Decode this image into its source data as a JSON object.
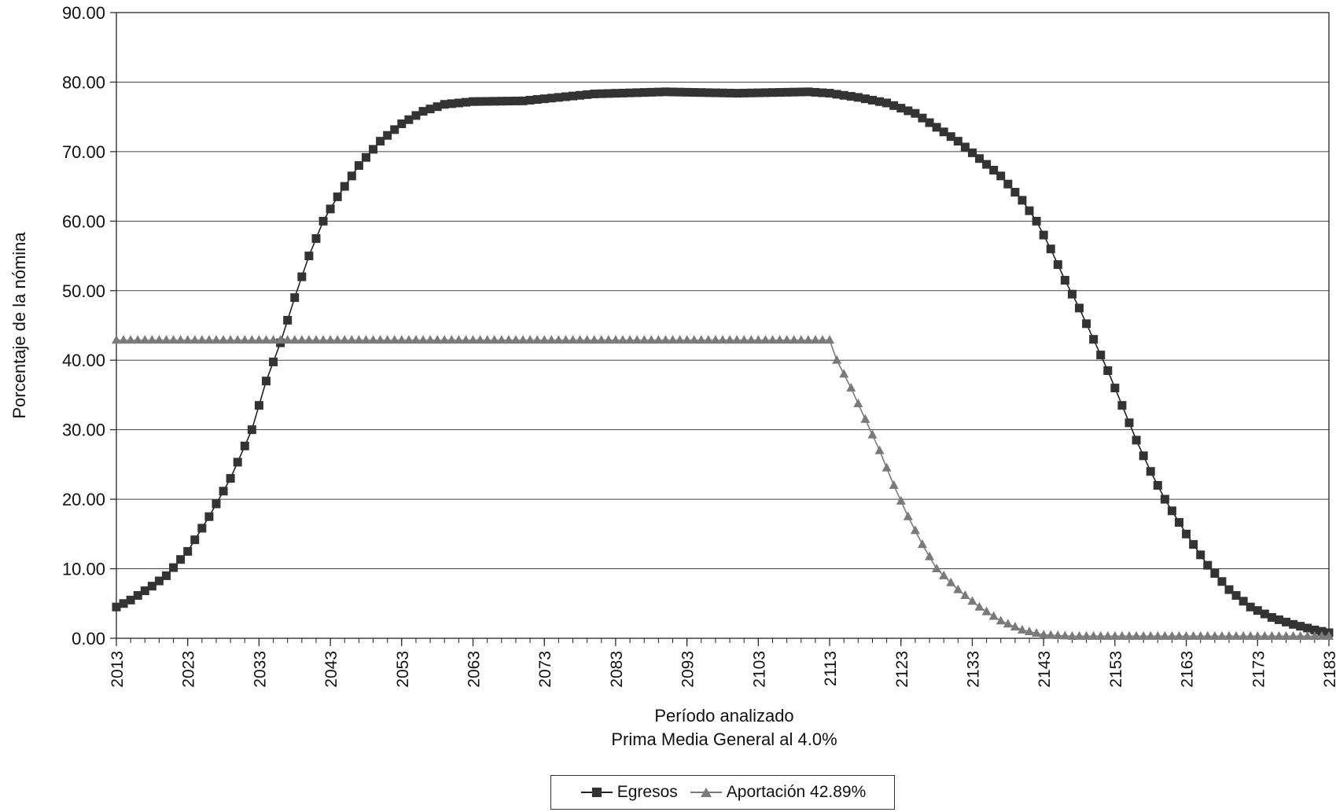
{
  "chart_data": {
    "type": "line",
    "title": "",
    "xlabel": "Período analizado",
    "xlabel2": "Prima Media General al 4.0%",
    "ylabel": "Porcentaje de la nómina",
    "xlim": [
      2013,
      2183
    ],
    "ylim": [
      0,
      90
    ],
    "y_ticks": [
      "0.00",
      "10.00",
      "20.00",
      "30.00",
      "40.00",
      "50.00",
      "60.00",
      "70.00",
      "80.00",
      "90.00"
    ],
    "x_ticks": [
      "2013",
      "2023",
      "2033",
      "2043",
      "2053",
      "2063",
      "2073",
      "2083",
      "2093",
      "2103",
      "2113",
      "2123",
      "2133",
      "2143",
      "2153",
      "2163",
      "2173",
      "2183"
    ],
    "grid": true,
    "legend_position": "bottom",
    "series": [
      {
        "name": "Egresos",
        "marker": "square",
        "color": "#222222",
        "points": [
          [
            2013,
            4.5
          ],
          [
            2015,
            5.5
          ],
          [
            2018,
            7.5
          ],
          [
            2020,
            9.0
          ],
          [
            2023,
            12.5
          ],
          [
            2026,
            17.5
          ],
          [
            2029,
            23.0
          ],
          [
            2032,
            30.0
          ],
          [
            2034,
            37.0
          ],
          [
            2036,
            42.5
          ],
          [
            2038,
            49.0
          ],
          [
            2040,
            55.0
          ],
          [
            2042,
            60.0
          ],
          [
            2044,
            63.5
          ],
          [
            2047,
            68.0
          ],
          [
            2050,
            71.5
          ],
          [
            2053,
            74.0
          ],
          [
            2056,
            75.8
          ],
          [
            2059,
            76.8
          ],
          [
            2063,
            77.2
          ],
          [
            2070,
            77.3
          ],
          [
            2080,
            78.3
          ],
          [
            2090,
            78.6
          ],
          [
            2100,
            78.4
          ],
          [
            2110,
            78.6
          ],
          [
            2113,
            78.4
          ],
          [
            2117,
            77.8
          ],
          [
            2121,
            77.0
          ],
          [
            2125,
            75.5
          ],
          [
            2128,
            73.5
          ],
          [
            2131,
            71.5
          ],
          [
            2134,
            69.0
          ],
          [
            2137,
            66.5
          ],
          [
            2140,
            63.0
          ],
          [
            2142,
            60.0
          ],
          [
            2144,
            56.0
          ],
          [
            2146,
            51.5
          ],
          [
            2148,
            47.5
          ],
          [
            2150,
            43.0
          ],
          [
            2152,
            38.5
          ],
          [
            2154,
            33.5
          ],
          [
            2156,
            28.5
          ],
          [
            2158,
            24.0
          ],
          [
            2160,
            20.0
          ],
          [
            2163,
            15.0
          ],
          [
            2166,
            10.5
          ],
          [
            2169,
            7.0
          ],
          [
            2172,
            4.5
          ],
          [
            2175,
            3.0
          ],
          [
            2178,
            2.0
          ],
          [
            2181,
            1.2
          ],
          [
            2183,
            0.8
          ]
        ]
      },
      {
        "name": "Aportación 42.89%",
        "marker": "triangle",
        "color": "#7a7a7a",
        "points": [
          [
            2013,
            42.89
          ],
          [
            2113,
            42.89
          ],
          [
            2114,
            40.0
          ],
          [
            2116,
            36.0
          ],
          [
            2118,
            31.5
          ],
          [
            2120,
            27.0
          ],
          [
            2122,
            22.0
          ],
          [
            2124,
            17.5
          ],
          [
            2126,
            13.5
          ],
          [
            2128,
            10.0
          ],
          [
            2131,
            7.0
          ],
          [
            2134,
            4.5
          ],
          [
            2137,
            2.5
          ],
          [
            2140,
            1.2
          ],
          [
            2143,
            0.5
          ],
          [
            2147,
            0.3
          ],
          [
            2160,
            0.3
          ],
          [
            2183,
            0.3
          ]
        ]
      }
    ]
  },
  "legend": {
    "items": [
      {
        "label": "Egresos"
      },
      {
        "label": "Aportación 42.89%"
      }
    ]
  }
}
